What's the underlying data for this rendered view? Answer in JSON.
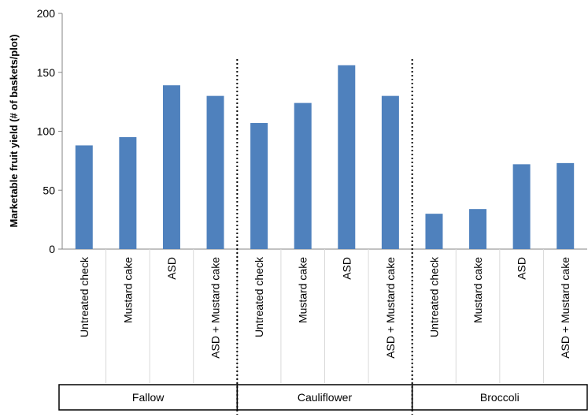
{
  "chart_data": {
    "type": "bar",
    "title": "",
    "xlabel": "",
    "ylabel": "Marketable fruit yield (# of baskets/plot)",
    "ylim": [
      0,
      200
    ],
    "yticks": [
      "0",
      "50",
      "100",
      "150",
      "200"
    ],
    "grid": false,
    "legend": "none",
    "bar_color": "#4f81bd",
    "groups": [
      {
        "name": "Fallow",
        "categories": [
          "Untreated check",
          "Mustard cake",
          "ASD",
          "ASD + Mustard cake"
        ],
        "values": [
          88,
          95,
          139,
          130
        ]
      },
      {
        "name": "Cauliflower",
        "categories": [
          "Untreated check",
          "Mustard cake",
          "ASD",
          "ASD + Mustard cake"
        ],
        "values": [
          107,
          124,
          156,
          130
        ]
      },
      {
        "name": "Broccoli",
        "categories": [
          "Untreated check",
          "Mustard cake",
          "ASD",
          "ASD + Mustard cake"
        ],
        "values": [
          30,
          34,
          72,
          73
        ]
      }
    ]
  }
}
